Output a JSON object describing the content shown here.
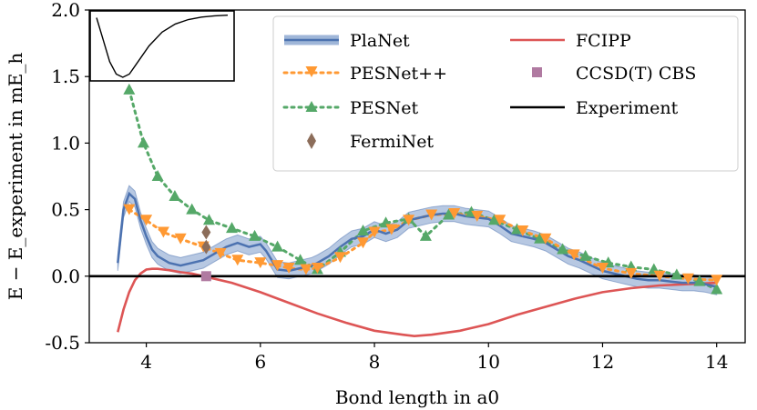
{
  "chart_data": {
    "type": "line",
    "xlabel": "Bond length in a0",
    "ylabel": "E − E_experiment in mE_h",
    "xlim": [
      3.0,
      14.5
    ],
    "ylim": [
      -0.5,
      2.0
    ],
    "xticks": [
      4,
      6,
      8,
      10,
      12,
      14
    ],
    "xtick_labels": [
      "4",
      "6",
      "8",
      "10",
      "12",
      "14"
    ],
    "yticks": [
      -0.5,
      0.0,
      0.5,
      1.0,
      1.5,
      2.0
    ],
    "ytick_labels": [
      "-0.5",
      "0.0",
      "0.5",
      "1.0",
      "1.5",
      "2.0"
    ],
    "legend_position": "top-right",
    "legend": [
      "PlaNet",
      "PESNet++",
      "PESNet",
      "FermiNet",
      "FCIPP",
      "CCSD(T) CBS",
      "Experiment"
    ],
    "colors": {
      "planet": "#4c72b0",
      "planet_band": "#9fb6d8",
      "pesnetpp": "#ff9933",
      "pesnet": "#55a868",
      "ferminet": "#8c6d5a",
      "fcipp": "#dd5555",
      "ccsdt": "#b07aa1",
      "experiment": "#000000"
    },
    "series": [
      {
        "name": "PlaNet",
        "style": "line-with-band",
        "x": [
          3.5,
          3.55,
          3.6,
          3.7,
          3.8,
          3.9,
          4.0,
          4.1,
          4.2,
          4.4,
          4.6,
          4.8,
          5.0,
          5.2,
          5.4,
          5.6,
          5.8,
          6.0,
          6.1,
          6.2,
          6.3,
          6.5,
          6.7,
          6.9,
          7.0,
          7.2,
          7.4,
          7.6,
          7.8,
          8.0,
          8.2,
          8.4,
          8.6,
          8.8,
          9.0,
          9.2,
          9.4,
          9.6,
          9.8,
          10.0,
          10.2,
          10.4,
          10.6,
          10.8,
          11.0,
          11.2,
          11.4,
          11.6,
          11.8,
          12.0,
          12.2,
          12.4,
          12.6,
          12.8,
          13.0,
          13.2,
          13.4,
          13.6,
          13.8,
          14.0
        ],
        "values": [
          0.1,
          0.3,
          0.5,
          0.62,
          0.58,
          0.42,
          0.3,
          0.2,
          0.15,
          0.1,
          0.08,
          0.1,
          0.12,
          0.17,
          0.22,
          0.25,
          0.22,
          0.24,
          0.19,
          0.12,
          0.05,
          0.04,
          0.06,
          0.08,
          0.1,
          0.15,
          0.22,
          0.28,
          0.3,
          0.35,
          0.32,
          0.35,
          0.42,
          0.44,
          0.46,
          0.47,
          0.47,
          0.45,
          0.44,
          0.43,
          0.38,
          0.32,
          0.3,
          0.28,
          0.25,
          0.2,
          0.15,
          0.12,
          0.08,
          0.04,
          0.02,
          0.0,
          -0.02,
          -0.03,
          -0.03,
          -0.04,
          -0.05,
          -0.05,
          -0.06,
          -0.08
        ],
        "band": 0.06
      },
      {
        "name": "PESNet++",
        "style": "dotted-triangle-down",
        "x": [
          3.7,
          4.0,
          4.3,
          4.6,
          5.0,
          5.3,
          5.6,
          6.0,
          6.3,
          6.5,
          6.8,
          7.0,
          7.4,
          7.8,
          8.0,
          8.3,
          8.6,
          9.0,
          9.4,
          9.8,
          10.2,
          10.6,
          11.0,
          11.5,
          12.0,
          12.5,
          13.0,
          13.5,
          14.0
        ],
        "values": [
          0.5,
          0.42,
          0.33,
          0.28,
          0.22,
          0.17,
          0.12,
          0.1,
          0.08,
          0.06,
          0.05,
          0.06,
          0.14,
          0.25,
          0.33,
          0.35,
          0.42,
          0.46,
          0.47,
          0.45,
          0.42,
          0.34,
          0.28,
          0.16,
          0.06,
          0.02,
          0.0,
          -0.02,
          -0.03
        ]
      },
      {
        "name": "PESNet",
        "style": "dotted-triangle-up",
        "x": [
          3.7,
          3.95,
          4.2,
          4.5,
          4.8,
          5.1,
          5.5,
          5.9,
          6.3,
          6.7,
          7.0,
          7.4,
          7.8,
          8.2,
          8.6,
          8.9,
          9.3,
          9.7,
          10.1,
          10.5,
          10.9,
          11.3,
          11.7,
          12.1,
          12.5,
          12.9,
          13.3,
          13.7,
          14.0
        ],
        "values": [
          1.4,
          1.0,
          0.75,
          0.6,
          0.5,
          0.42,
          0.36,
          0.3,
          0.22,
          0.12,
          0.05,
          0.18,
          0.34,
          0.4,
          0.43,
          0.3,
          0.46,
          0.48,
          0.42,
          0.35,
          0.28,
          0.2,
          0.15,
          0.1,
          0.07,
          0.05,
          0.01,
          -0.04,
          -0.1
        ]
      },
      {
        "name": "FermiNet",
        "style": "diamond-markers",
        "x": [
          5.05,
          5.05
        ],
        "values": [
          0.33,
          0.22
        ]
      },
      {
        "name": "FCIPP",
        "style": "line",
        "x": [
          3.5,
          3.6,
          3.7,
          3.8,
          3.9,
          4.0,
          4.1,
          4.2,
          4.3,
          4.4,
          4.6,
          4.8,
          5.0,
          5.5,
          6.0,
          6.5,
          7.0,
          7.5,
          8.0,
          8.5,
          8.7,
          9.0,
          9.5,
          10.0,
          10.5,
          11.0,
          11.5,
          12.0,
          12.5,
          13.0,
          13.5,
          14.0
        ],
        "values": [
          -0.42,
          -0.25,
          -0.12,
          -0.03,
          0.02,
          0.05,
          0.055,
          0.055,
          0.05,
          0.045,
          0.03,
          0.02,
          0.0,
          -0.05,
          -0.12,
          -0.2,
          -0.28,
          -0.35,
          -0.41,
          -0.44,
          -0.45,
          -0.44,
          -0.41,
          -0.36,
          -0.29,
          -0.23,
          -0.17,
          -0.12,
          -0.09,
          -0.07,
          -0.06,
          -0.05
        ]
      },
      {
        "name": "CCSD(T) CBS",
        "style": "square-markers",
        "x": [
          5.05
        ],
        "values": [
          0.0
        ]
      },
      {
        "name": "Experiment",
        "style": "horizontal-line",
        "x": [
          3.0,
          14.5
        ],
        "values": [
          0.0,
          0.0
        ]
      }
    ],
    "inset": {
      "description": "potential energy curve",
      "x": [
        0.0,
        0.05,
        0.1,
        0.15,
        0.2,
        0.25,
        0.3,
        0.4,
        0.5,
        0.6,
        0.7,
        0.8,
        0.9,
        1.0
      ],
      "values": [
        0.95,
        0.6,
        0.25,
        0.05,
        0.0,
        0.05,
        0.2,
        0.5,
        0.72,
        0.85,
        0.92,
        0.96,
        0.98,
        0.99
      ]
    }
  }
}
